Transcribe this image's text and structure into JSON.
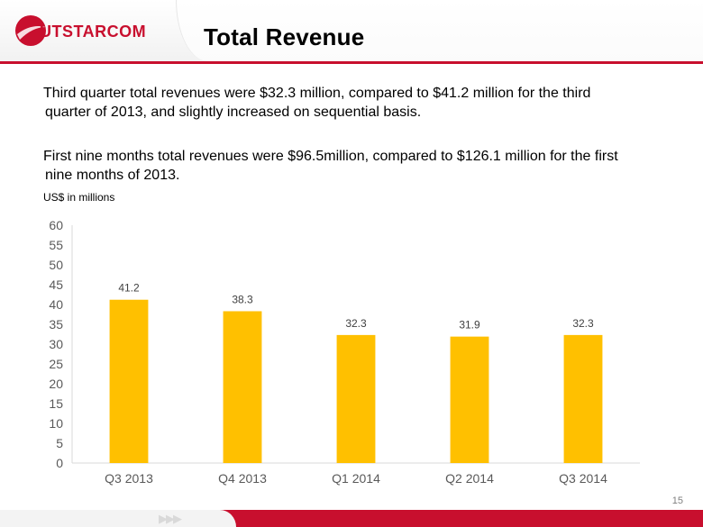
{
  "header": {
    "logo_text": "UTSTARCOM",
    "title": "Total Revenue"
  },
  "body": {
    "paragraph1_line1": "Third quarter total revenues were $32.3 million, compared to $41.2 million for the third",
    "paragraph1_line2": "quarter of 2013, and slightly increased on sequential basis.",
    "paragraph2_line1": "First nine months total revenues were $96.5million, compared to $126.1 million for the first",
    "paragraph2_line2": "nine months of 2013.",
    "units_label": "US$ in millions"
  },
  "chart_data": {
    "type": "bar",
    "title": "",
    "xlabel": "",
    "ylabel": "",
    "categories": [
      "Q3 2013",
      "Q4 2013",
      "Q1 2014",
      "Q2 2014",
      "Q3 2014"
    ],
    "values": [
      41.2,
      38.3,
      32.3,
      31.9,
      32.3
    ],
    "data_labels": [
      "41.2",
      "38.3",
      "32.3",
      "31.9",
      "32.3"
    ],
    "ylim": [
      0,
      60
    ],
    "yticks": [
      0,
      5,
      10,
      15,
      20,
      25,
      30,
      35,
      40,
      45,
      50,
      55,
      60
    ],
    "grid": false,
    "legend": "none",
    "bar_color": "#ffc000"
  },
  "footer": {
    "page_number": "15",
    "arrows": "▶▶▶"
  },
  "colors": {
    "brand_red": "#c80f2e",
    "bar": "#ffc000"
  }
}
